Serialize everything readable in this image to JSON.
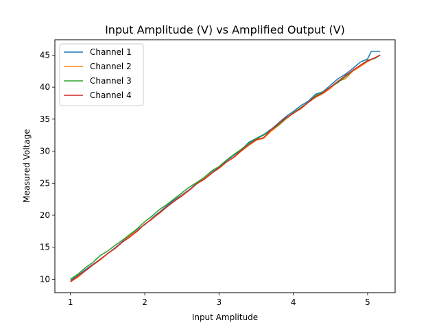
{
  "chart_data": {
    "type": "line",
    "title": "Input Amplitude (V) vs Amplified Output (V)",
    "xlabel": "Input Amplitude",
    "ylabel": "Measured Voltage",
    "xlim": [
      0.79,
      5.37
    ],
    "ylim": [
      7.9,
      47.4
    ],
    "xticks": [
      1,
      2,
      3,
      4,
      5
    ],
    "yticks": [
      10,
      15,
      20,
      25,
      30,
      35,
      40,
      45
    ],
    "grid": false,
    "legend_position": "top-left",
    "series": [
      {
        "name": "Channel 1",
        "color": "#1f77b4",
        "points": [
          [
            1.0,
            9.8
          ],
          [
            1.1,
            10.6
          ],
          [
            1.2,
            11.5
          ],
          [
            1.3,
            12.3
          ],
          [
            1.4,
            13.1
          ],
          [
            1.5,
            14.0
          ],
          [
            1.6,
            14.9
          ],
          [
            1.7,
            15.9
          ],
          [
            1.8,
            16.9
          ],
          [
            1.9,
            17.8
          ],
          [
            2.0,
            18.5
          ],
          [
            2.1,
            19.6
          ],
          [
            2.2,
            20.5
          ],
          [
            2.3,
            21.5
          ],
          [
            2.4,
            22.4
          ],
          [
            2.5,
            23.2
          ],
          [
            2.6,
            24.0
          ],
          [
            2.7,
            25.0
          ],
          [
            2.8,
            25.9
          ],
          [
            2.9,
            26.7
          ],
          [
            3.0,
            27.5
          ],
          [
            3.1,
            28.5
          ],
          [
            3.2,
            29.4
          ],
          [
            3.3,
            30.2
          ],
          [
            3.4,
            31.4
          ],
          [
            3.5,
            32.0
          ],
          [
            3.6,
            32.6
          ],
          [
            3.7,
            33.4
          ],
          [
            3.8,
            34.4
          ],
          [
            3.9,
            35.4
          ],
          [
            4.0,
            36.2
          ],
          [
            4.1,
            37.1
          ],
          [
            4.2,
            37.8
          ],
          [
            4.3,
            38.9
          ],
          [
            4.4,
            39.3
          ],
          [
            4.5,
            40.3
          ],
          [
            4.6,
            41.3
          ],
          [
            4.7,
            42.0
          ],
          [
            4.8,
            42.9
          ],
          [
            4.9,
            43.9
          ],
          [
            5.0,
            44.4
          ],
          [
            5.05,
            45.6
          ],
          [
            5.17,
            45.6
          ]
        ]
      },
      {
        "name": "Channel 2",
        "color": "#ff7f0e",
        "points": [
          [
            1.0,
            9.6
          ],
          [
            1.1,
            10.3
          ],
          [
            1.2,
            11.3
          ],
          [
            1.3,
            12.2
          ],
          [
            1.4,
            13.0
          ],
          [
            1.5,
            14.0
          ],
          [
            1.6,
            14.8
          ],
          [
            1.7,
            15.8
          ],
          [
            1.8,
            16.8
          ],
          [
            1.9,
            17.6
          ],
          [
            2.0,
            18.6
          ],
          [
            2.1,
            19.5
          ],
          [
            2.2,
            20.3
          ],
          [
            2.3,
            21.3
          ],
          [
            2.4,
            22.2
          ],
          [
            2.5,
            23.1
          ],
          [
            2.6,
            23.9
          ],
          [
            2.7,
            24.9
          ],
          [
            2.8,
            25.7
          ],
          [
            2.9,
            26.6
          ],
          [
            3.0,
            27.3
          ],
          [
            3.1,
            28.3
          ],
          [
            3.2,
            29.0
          ],
          [
            3.3,
            30.0
          ],
          [
            3.4,
            30.9
          ],
          [
            3.5,
            31.7
          ],
          [
            3.6,
            32.0
          ],
          [
            3.7,
            33.1
          ],
          [
            3.8,
            34.0
          ],
          [
            3.9,
            35.0
          ],
          [
            4.0,
            35.9
          ],
          [
            4.1,
            36.6
          ],
          [
            4.2,
            37.6
          ],
          [
            4.3,
            38.4
          ],
          [
            4.4,
            39.0
          ],
          [
            4.5,
            39.8
          ],
          [
            4.6,
            40.9
          ],
          [
            4.7,
            41.3
          ],
          [
            4.8,
            42.5
          ],
          [
            4.9,
            43.2
          ],
          [
            5.0,
            44.0
          ],
          [
            5.1,
            44.6
          ],
          [
            5.17,
            45.0
          ]
        ]
      },
      {
        "name": "Channel 3",
        "color": "#2ca02c",
        "points": [
          [
            1.0,
            10.0
          ],
          [
            1.1,
            10.8
          ],
          [
            1.2,
            11.8
          ],
          [
            1.3,
            12.6
          ],
          [
            1.4,
            13.7
          ],
          [
            1.5,
            14.4
          ],
          [
            1.6,
            15.3
          ],
          [
            1.7,
            16.1
          ],
          [
            1.8,
            17.0
          ],
          [
            1.9,
            17.9
          ],
          [
            2.0,
            19.0
          ],
          [
            2.1,
            19.9
          ],
          [
            2.2,
            20.9
          ],
          [
            2.3,
            21.7
          ],
          [
            2.4,
            22.6
          ],
          [
            2.5,
            23.5
          ],
          [
            2.6,
            24.4
          ],
          [
            2.7,
            25.1
          ],
          [
            2.8,
            25.9
          ],
          [
            2.9,
            26.9
          ],
          [
            3.0,
            27.6
          ],
          [
            3.1,
            28.6
          ],
          [
            3.2,
            29.5
          ],
          [
            3.3,
            30.3
          ],
          [
            3.4,
            31.2
          ],
          [
            3.5,
            31.9
          ],
          [
            3.6,
            32.5
          ],
          [
            3.7,
            33.3
          ],
          [
            3.8,
            34.1
          ],
          [
            3.9,
            35.1
          ],
          [
            4.0,
            36.0
          ],
          [
            4.1,
            36.8
          ],
          [
            4.2,
            37.6
          ],
          [
            4.3,
            38.7
          ],
          [
            4.4,
            39.2
          ],
          [
            4.5,
            40.0
          ],
          [
            4.6,
            40.7
          ],
          [
            4.7,
            41.6
          ],
          [
            4.8,
            42.6
          ],
          [
            4.9,
            43.4
          ],
          [
            5.0,
            44.2
          ],
          [
            5.1,
            44.5
          ],
          [
            5.17,
            45.0
          ]
        ]
      },
      {
        "name": "Channel 4",
        "color": "#d62728",
        "points": [
          [
            1.0,
            9.6
          ],
          [
            1.1,
            10.5
          ],
          [
            1.2,
            11.3
          ],
          [
            1.3,
            12.2
          ],
          [
            1.4,
            13.1
          ],
          [
            1.5,
            14.0
          ],
          [
            1.6,
            14.8
          ],
          [
            1.7,
            15.8
          ],
          [
            1.8,
            16.6
          ],
          [
            1.9,
            17.5
          ],
          [
            2.0,
            18.6
          ],
          [
            2.1,
            19.4
          ],
          [
            2.2,
            20.4
          ],
          [
            2.3,
            21.3
          ],
          [
            2.4,
            22.2
          ],
          [
            2.5,
            23.0
          ],
          [
            2.6,
            23.9
          ],
          [
            2.7,
            24.9
          ],
          [
            2.8,
            25.6
          ],
          [
            2.9,
            26.5
          ],
          [
            3.0,
            27.4
          ],
          [
            3.1,
            28.3
          ],
          [
            3.2,
            29.1
          ],
          [
            3.3,
            30.1
          ],
          [
            3.4,
            31.0
          ],
          [
            3.5,
            31.8
          ],
          [
            3.6,
            32.1
          ],
          [
            3.7,
            33.3
          ],
          [
            3.8,
            34.3
          ],
          [
            3.9,
            35.2
          ],
          [
            4.0,
            35.9
          ],
          [
            4.1,
            36.7
          ],
          [
            4.2,
            37.6
          ],
          [
            4.3,
            38.5
          ],
          [
            4.4,
            39.1
          ],
          [
            4.5,
            40.0
          ],
          [
            4.6,
            40.9
          ],
          [
            4.7,
            41.8
          ],
          [
            4.8,
            42.6
          ],
          [
            4.9,
            43.4
          ],
          [
            5.0,
            44.1
          ],
          [
            5.1,
            44.6
          ],
          [
            5.17,
            45.0
          ]
        ]
      }
    ]
  }
}
